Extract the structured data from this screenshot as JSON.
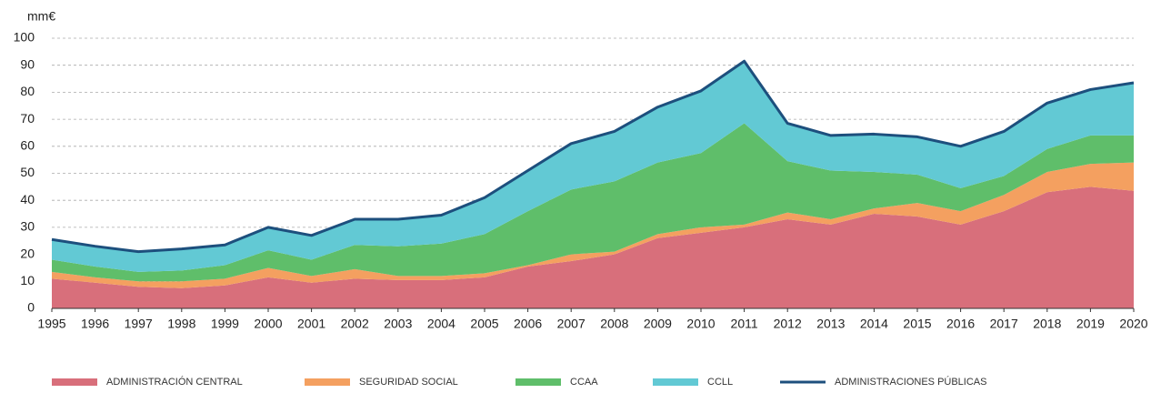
{
  "chart_data": {
    "type": "stacked_area",
    "y_unit": "mm€",
    "categories": [
      "1995",
      "1996",
      "1997",
      "1998",
      "1999",
      "2000",
      "2001",
      "2002",
      "2003",
      "2004",
      "2005",
      "2006",
      "2007",
      "2008",
      "2009",
      "2010",
      "2011",
      "2012",
      "2013",
      "2014",
      "2015",
      "2016",
      "2017",
      "2018",
      "2019",
      "2020"
    ],
    "series": [
      {
        "name": "ADMINISTRACIÓN  CENTRAL",
        "type": "area",
        "color": "#d86f7b",
        "values": [
          11,
          9.5,
          8,
          7.5,
          8.5,
          11.5,
          9.5,
          11,
          10.5,
          10.5,
          11.5,
          15.5,
          17.5,
          20,
          26,
          28,
          30,
          33,
          31,
          35,
          34,
          31,
          36,
          43,
          45,
          43.5
        ]
      },
      {
        "name": "SEGURIDAD SOCIAL",
        "type": "area",
        "color": "#f4a060",
        "values": [
          2.5,
          2,
          2,
          2.5,
          2.5,
          3.5,
          2.5,
          3.5,
          1.5,
          1.5,
          1.5,
          0.5,
          2.5,
          1,
          1.5,
          2,
          1,
          2.5,
          2,
          2,
          5,
          5,
          6,
          7.5,
          8.5,
          10.5
        ]
      },
      {
        "name": "CCAA",
        "type": "area",
        "color": "#5fbe6a",
        "values": [
          4.5,
          4,
          3.5,
          4,
          5,
          6.5,
          6,
          9,
          11,
          12,
          14.5,
          20,
          24,
          26,
          26.5,
          27.5,
          37.5,
          19,
          18,
          13.5,
          10.5,
          8.5,
          7,
          8.5,
          10.5,
          10
        ]
      },
      {
        "name": "CCLL",
        "type": "area",
        "color": "#62c9d4",
        "values": [
          7.5,
          7.5,
          7.5,
          8,
          7.5,
          8.5,
          9,
          9.5,
          10,
          10.5,
          13.5,
          15,
          17,
          18.5,
          20.5,
          23,
          23,
          14,
          13,
          14,
          14,
          15.5,
          16.5,
          17,
          17,
          19.5
        ]
      },
      {
        "name": "ADMINISTRACIONES PÚBLICAS",
        "type": "line",
        "color": "#1d4f7d",
        "values": [
          25.5,
          23,
          21,
          22,
          23.5,
          30,
          27,
          33,
          33,
          34.5,
          41,
          51,
          61,
          65.5,
          74.5,
          80.5,
          91.5,
          68.5,
          64,
          64.5,
          63.5,
          60,
          65.5,
          76,
          81,
          83.5
        ]
      }
    ],
    "ylim": [
      0,
      100
    ],
    "yticks": [
      0,
      10,
      20,
      30,
      40,
      50,
      60,
      70,
      80,
      90,
      100
    ],
    "grid": true
  }
}
